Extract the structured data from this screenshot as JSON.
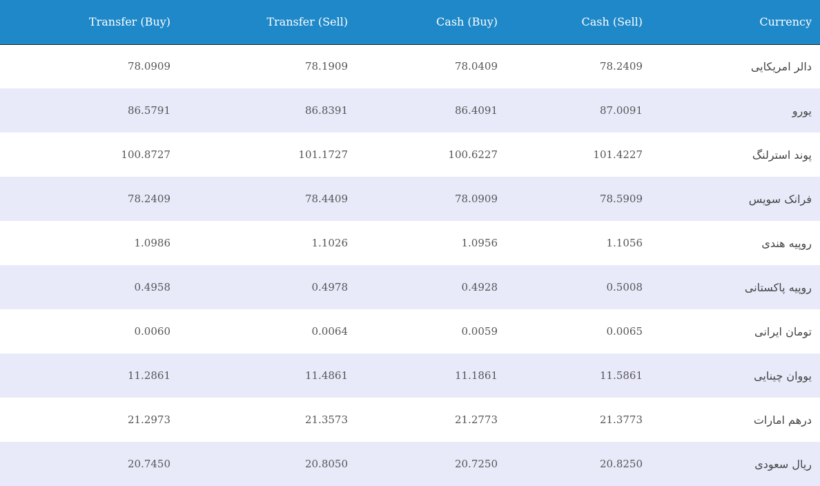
{
  "table": {
    "headers": {
      "transfer_buy": "Transfer (Buy)",
      "transfer_sell": "Transfer (Sell)",
      "cash_buy": "Cash (Buy)",
      "cash_sell": "Cash (Sell)",
      "currency": "Currency"
    },
    "rows": [
      {
        "transfer_buy": "78.0909",
        "transfer_sell": "78.1909",
        "cash_buy": "78.0409",
        "cash_sell": "78.2409",
        "currency": "دالر امریکایی"
      },
      {
        "transfer_buy": "86.5791",
        "transfer_sell": "86.8391",
        "cash_buy": "86.4091",
        "cash_sell": "87.0091",
        "currency": "یورو"
      },
      {
        "transfer_buy": "100.8727",
        "transfer_sell": "101.1727",
        "cash_buy": "100.6227",
        "cash_sell": "101.4227",
        "currency": "پوند استرلنگ"
      },
      {
        "transfer_buy": "78.2409",
        "transfer_sell": "78.4409",
        "cash_buy": "78.0909",
        "cash_sell": "78.5909",
        "currency": "فرانک سویس"
      },
      {
        "transfer_buy": "1.0986",
        "transfer_sell": "1.1026",
        "cash_buy": "1.0956",
        "cash_sell": "1.1056",
        "currency": "روپیه هندی"
      },
      {
        "transfer_buy": "0.4958",
        "transfer_sell": "0.4978",
        "cash_buy": "0.4928",
        "cash_sell": "0.5008",
        "currency": "روپیه پاکستانی"
      },
      {
        "transfer_buy": "0.0060",
        "transfer_sell": "0.0064",
        "cash_buy": "0.0059",
        "cash_sell": "0.0065",
        "currency": "تومان ایرانی"
      },
      {
        "transfer_buy": "11.2861",
        "transfer_sell": "11.4861",
        "cash_buy": "11.1861",
        "cash_sell": "11.5861",
        "currency": "یووان چینایی"
      },
      {
        "transfer_buy": "21.2973",
        "transfer_sell": "21.3573",
        "cash_buy": "21.2773",
        "cash_sell": "21.3773",
        "currency": "درهم امارات"
      },
      {
        "transfer_buy": "20.7450",
        "transfer_sell": "20.8050",
        "cash_buy": "20.7250",
        "cash_sell": "20.8250",
        "currency": "ریال سعودی"
      }
    ]
  },
  "colors": {
    "header_background": "#1e88c8",
    "header_text": "#ffffff",
    "row_alt_background": "#e8eafa",
    "row_background": "#ffffff",
    "cell_text": "#555555"
  }
}
